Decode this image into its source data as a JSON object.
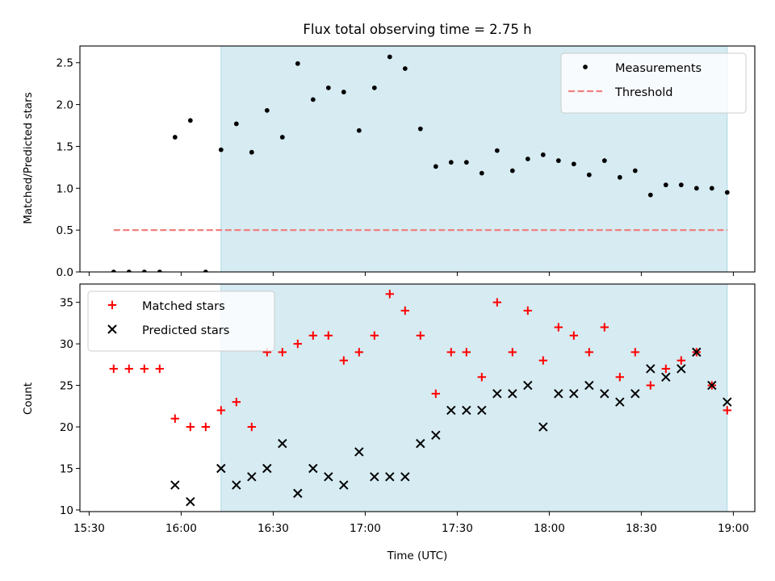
{
  "chart_data": [
    {
      "type": "scatter",
      "title": "Flux total observing time = 2.75 h",
      "ylabel": "Matched/Predicted stars",
      "xlim": [
        "15:27",
        "19:07"
      ],
      "ylim": [
        0,
        2.7
      ],
      "yticks": [
        "0.0",
        "0.5",
        "1.0",
        "1.5",
        "2.0",
        "2.5"
      ],
      "shaded_region": [
        "16:13",
        "18:58"
      ],
      "shade_color": "#add8e6",
      "legend": {
        "placement": "top-right",
        "entries": [
          "Measurements",
          "Threshold"
        ]
      },
      "threshold": {
        "name": "Threshold",
        "value": 0.5,
        "x": [
          "15:38",
          "18:58"
        ],
        "color": "#f08080",
        "style": "dashed"
      },
      "series": [
        {
          "name": "Measurements",
          "marker": "dot",
          "color": "#000000",
          "x": [
            "15:38",
            "15:43",
            "15:48",
            "15:53",
            "15:58",
            "16:03",
            "16:08",
            "16:13",
            "16:18",
            "16:23",
            "16:28",
            "16:33",
            "16:38",
            "16:43",
            "16:48",
            "16:53",
            "16:58",
            "17:03",
            "17:08",
            "17:13",
            "17:18",
            "17:23",
            "17:28",
            "17:33",
            "17:38",
            "17:43",
            "17:48",
            "17:53",
            "17:58",
            "18:03",
            "18:08",
            "18:13",
            "18:18",
            "18:23",
            "18:28",
            "18:33",
            "18:38",
            "18:43",
            "18:48",
            "18:53",
            "18:58"
          ],
          "y": [
            0,
            0,
            0,
            0,
            1.61,
            1.81,
            0,
            1.46,
            1.77,
            1.43,
            1.93,
            1.61,
            2.49,
            2.06,
            2.2,
            2.15,
            1.69,
            2.2,
            2.57,
            2.43,
            1.71,
            1.26,
            1.31,
            1.31,
            1.18,
            1.45,
            1.21,
            1.35,
            1.4,
            1.33,
            1.29,
            1.16,
            1.33,
            1.13,
            1.21,
            0.92,
            1.04,
            1.04,
            1.0,
            1.0,
            0.95
          ]
        }
      ]
    },
    {
      "type": "scatter",
      "xlabel": "Time (UTC)",
      "ylabel": "Count",
      "xlim": [
        "15:27",
        "19:07"
      ],
      "ylim": [
        9.8,
        37.2
      ],
      "xticks": [
        "15:30",
        "16:00",
        "16:30",
        "17:00",
        "17:30",
        "18:00",
        "18:30",
        "19:00"
      ],
      "yticks": [
        "10",
        "15",
        "20",
        "25",
        "30",
        "35"
      ],
      "shaded_region": [
        "16:13",
        "18:58"
      ],
      "shade_color": "#add8e6",
      "legend": {
        "placement": "top-left",
        "entries": [
          "Matched stars",
          "Predicted stars"
        ]
      },
      "series": [
        {
          "name": "Matched stars",
          "marker": "plus",
          "color": "#ff0000",
          "x": [
            "15:38",
            "15:43",
            "15:48",
            "15:53",
            "15:58",
            "16:03",
            "16:08",
            "16:13",
            "16:18",
            "16:23",
            "16:28",
            "16:33",
            "16:38",
            "16:43",
            "16:48",
            "16:53",
            "16:58",
            "17:03",
            "17:08",
            "17:13",
            "17:18",
            "17:23",
            "17:28",
            "17:33",
            "17:38",
            "17:43",
            "17:48",
            "17:53",
            "17:58",
            "18:03",
            "18:08",
            "18:13",
            "18:18",
            "18:23",
            "18:28",
            "18:33",
            "18:38",
            "18:43",
            "18:48",
            "18:53",
            "18:58"
          ],
          "y": [
            27,
            27,
            27,
            27,
            21,
            20,
            20,
            22,
            23,
            20,
            29,
            29,
            30,
            31,
            31,
            28,
            29,
            31,
            36,
            34,
            31,
            24,
            29,
            29,
            26,
            35,
            29,
            34,
            28,
            32,
            31,
            29,
            32,
            26,
            29,
            25,
            27,
            28,
            29,
            25,
            22
          ]
        },
        {
          "name": "Predicted stars",
          "marker": "x",
          "color": "#000000",
          "x": [
            "15:58",
            "16:03",
            "16:13",
            "16:18",
            "16:23",
            "16:28",
            "16:33",
            "16:38",
            "16:43",
            "16:48",
            "16:53",
            "16:58",
            "17:03",
            "17:08",
            "17:13",
            "17:18",
            "17:23",
            "17:28",
            "17:33",
            "17:38",
            "17:43",
            "17:48",
            "17:53",
            "17:58",
            "18:03",
            "18:08",
            "18:13",
            "18:18",
            "18:23",
            "18:28",
            "18:33",
            "18:38",
            "18:43",
            "18:48",
            "18:53",
            "18:58"
          ],
          "y": [
            13,
            11,
            15,
            13,
            14,
            15,
            18,
            12,
            15,
            14,
            13,
            17,
            14,
            14,
            14,
            18,
            19,
            22,
            22,
            22,
            24,
            24,
            25,
            20,
            24,
            24,
            25,
            24,
            23,
            24,
            27,
            26,
            27,
            29,
            25,
            23
          ]
        }
      ]
    }
  ]
}
